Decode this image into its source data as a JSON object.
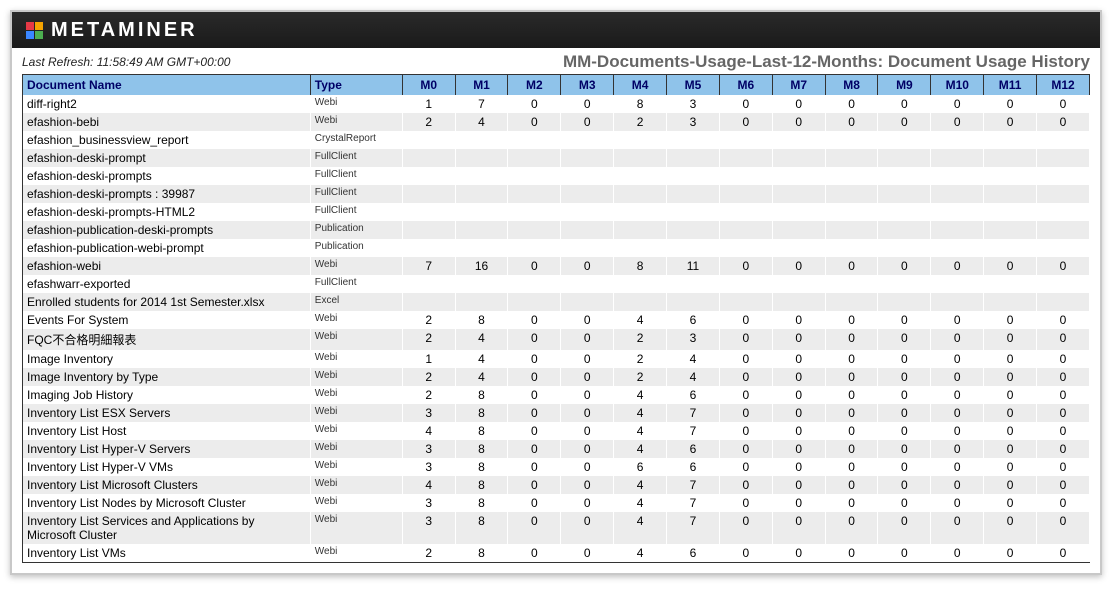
{
  "brand": "METAMINER",
  "refresh_label": "Last Refresh: 11:58:49 AM GMT+00:00",
  "report_title": "MM-Documents-Usage-Last-12-Months: Document Usage History",
  "columns": {
    "name": "Document Name",
    "type": "Type",
    "months": [
      "M0",
      "M1",
      "M2",
      "M3",
      "M4",
      "M5",
      "M6",
      "M7",
      "M8",
      "M9",
      "M10",
      "M11",
      "M12"
    ]
  },
  "rows": [
    {
      "name": "diff-right2",
      "type": "Webi",
      "vals": [
        1,
        7,
        0,
        0,
        8,
        3,
        0,
        0,
        0,
        0,
        0,
        0,
        0
      ]
    },
    {
      "name": "efashion-bebi",
      "type": "Webi",
      "vals": [
        2,
        4,
        0,
        0,
        2,
        3,
        0,
        0,
        0,
        0,
        0,
        0,
        0
      ]
    },
    {
      "name": "efashion_businessview_report",
      "type": "CrystalReport",
      "vals": null
    },
    {
      "name": "efashion-deski-prompt",
      "type": "FullClient",
      "vals": null
    },
    {
      "name": "efashion-deski-prompts",
      "type": "FullClient",
      "vals": null
    },
    {
      "name": "efashion-deski-prompts : 39987",
      "type": "FullClient",
      "vals": null
    },
    {
      "name": "efashion-deski-prompts-HTML2",
      "type": "FullClient",
      "vals": null
    },
    {
      "name": "efashion-publication-deski-prompts",
      "type": "Publication",
      "vals": null
    },
    {
      "name": "efashion-publication-webi-prompt",
      "type": "Publication",
      "vals": null
    },
    {
      "name": "efashion-webi",
      "type": "Webi",
      "vals": [
        7,
        16,
        0,
        0,
        8,
        11,
        0,
        0,
        0,
        0,
        0,
        0,
        0
      ]
    },
    {
      "name": "efashwarr-exported",
      "type": "FullClient",
      "vals": null
    },
    {
      "name": "Enrolled students for 2014 1st Semester.xlsx",
      "type": "Excel",
      "vals": null
    },
    {
      "name": "Events For System",
      "type": "Webi",
      "vals": [
        2,
        8,
        0,
        0,
        4,
        6,
        0,
        0,
        0,
        0,
        0,
        0,
        0
      ]
    },
    {
      "name": "FQC不合格明細報表",
      "type": "Webi",
      "vals": [
        2,
        4,
        0,
        0,
        2,
        3,
        0,
        0,
        0,
        0,
        0,
        0,
        0
      ]
    },
    {
      "name": "Image Inventory",
      "type": "Webi",
      "vals": [
        1,
        4,
        0,
        0,
        2,
        4,
        0,
        0,
        0,
        0,
        0,
        0,
        0
      ]
    },
    {
      "name": "Image Inventory by Type",
      "type": "Webi",
      "vals": [
        2,
        4,
        0,
        0,
        2,
        4,
        0,
        0,
        0,
        0,
        0,
        0,
        0
      ]
    },
    {
      "name": "Imaging Job History",
      "type": "Webi",
      "vals": [
        2,
        8,
        0,
        0,
        4,
        6,
        0,
        0,
        0,
        0,
        0,
        0,
        0
      ]
    },
    {
      "name": "Inventory List ESX Servers",
      "type": "Webi",
      "vals": [
        3,
        8,
        0,
        0,
        4,
        7,
        0,
        0,
        0,
        0,
        0,
        0,
        0
      ]
    },
    {
      "name": "Inventory List Host",
      "type": "Webi",
      "vals": [
        4,
        8,
        0,
        0,
        4,
        7,
        0,
        0,
        0,
        0,
        0,
        0,
        0
      ]
    },
    {
      "name": "Inventory List Hyper-V Servers",
      "type": "Webi",
      "vals": [
        3,
        8,
        0,
        0,
        4,
        6,
        0,
        0,
        0,
        0,
        0,
        0,
        0
      ]
    },
    {
      "name": "Inventory List Hyper-V VMs",
      "type": "Webi",
      "vals": [
        3,
        8,
        0,
        0,
        6,
        6,
        0,
        0,
        0,
        0,
        0,
        0,
        0
      ]
    },
    {
      "name": "Inventory List Microsoft Clusters",
      "type": "Webi",
      "vals": [
        4,
        8,
        0,
        0,
        4,
        7,
        0,
        0,
        0,
        0,
        0,
        0,
        0
      ]
    },
    {
      "name": "Inventory List Nodes by Microsoft Cluster",
      "type": "Webi",
      "vals": [
        3,
        8,
        0,
        0,
        4,
        7,
        0,
        0,
        0,
        0,
        0,
        0,
        0
      ]
    },
    {
      "name": "Inventory List Services and Applications by Microsoft Cluster",
      "type": "Webi",
      "vals": [
        3,
        8,
        0,
        0,
        4,
        7,
        0,
        0,
        0,
        0,
        0,
        0,
        0
      ]
    },
    {
      "name": "Inventory List VMs",
      "type": "Webi",
      "vals": [
        2,
        8,
        0,
        0,
        4,
        6,
        0,
        0,
        0,
        0,
        0,
        0,
        0
      ]
    }
  ],
  "colors": {
    "header_bg_top": "#2a2a2a",
    "header_bg_bottom": "#1a1a1a",
    "thead_bg": "#8fc3ea",
    "thead_fg": "#000066",
    "row_even": "#ffffff",
    "row_odd": "#ececec",
    "title_fg": "#666666",
    "border": "#333333"
  }
}
